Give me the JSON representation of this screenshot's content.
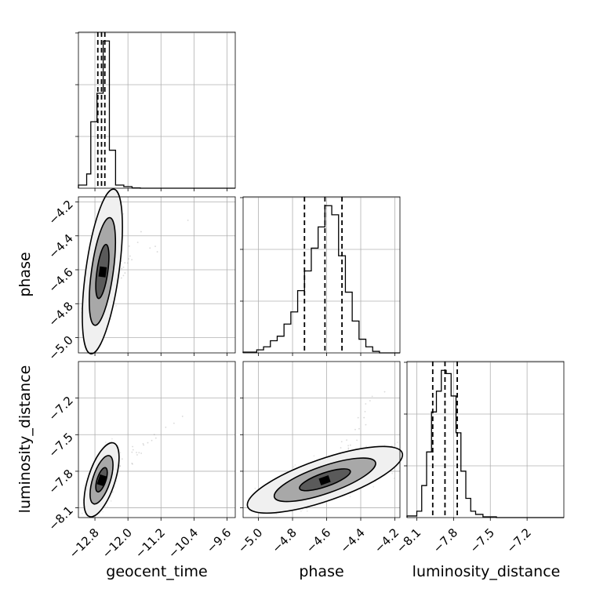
{
  "chart_data": {
    "type": "corner",
    "parameters": [
      "geocent_time",
      "phase",
      "luminosity_distance"
    ],
    "axes": [
      {
        "name": "geocent_time",
        "label": "geocent_time",
        "lim": [
          -13.2,
          -9.4
        ],
        "ticks": [
          -12.8,
          -12.0,
          -11.2,
          -10.4,
          -9.6
        ],
        "tick_labels": [
          "−12.8",
          "−12.0",
          "−11.2",
          "−10.4",
          "−9.6"
        ]
      },
      {
        "name": "phase",
        "label": "phase",
        "lim": [
          -5.09,
          -4.17
        ],
        "ticks": [
          -5.0,
          -4.8,
          -4.6,
          -4.4,
          -4.2
        ],
        "tick_labels": [
          "−5.0",
          "−4.8",
          "−4.6",
          "−4.4",
          "−4.2"
        ]
      },
      {
        "name": "luminosity_distance",
        "label": "luminosity_distance",
        "lim": [
          -8.18,
          -6.9
        ],
        "ticks": [
          -8.1,
          -7.8,
          -7.5,
          -7.2
        ],
        "tick_labels": [
          "−8.1",
          "−7.8",
          "−7.5",
          "−7.2"
        ]
      }
    ],
    "histograms": [
      {
        "param": "geocent_time",
        "bin_edges": [
          -13.2,
          -13.0,
          -12.9,
          -12.75,
          -12.6,
          -12.45,
          -12.3,
          -12.1,
          -11.9,
          -11.7,
          -9.4
        ],
        "counts": [
          0.2,
          0.9,
          4.2,
          6.0,
          9.3,
          2.4,
          0.2,
          0.1,
          0.02,
          0.0
        ],
        "quantiles": [
          -12.73,
          -12.64,
          -12.56
        ]
      },
      {
        "param": "phase",
        "bin_edges": [
          -5.09,
          -5.01,
          -4.97,
          -4.93,
          -4.89,
          -4.85,
          -4.81,
          -4.77,
          -4.73,
          -4.69,
          -4.65,
          -4.61,
          -4.57,
          -4.53,
          -4.49,
          -4.45,
          -4.41,
          -4.37,
          -4.33,
          -4.29,
          -4.17
        ],
        "counts": [
          0.05,
          0.2,
          0.4,
          0.8,
          1.1,
          1.9,
          2.7,
          4.1,
          5.4,
          6.9,
          8.3,
          9.7,
          9.1,
          6.4,
          4.0,
          2.1,
          0.9,
          0.4,
          0.1,
          0.0
        ],
        "quantiles": [
          -4.73,
          -4.61,
          -4.51
        ]
      },
      {
        "param": "luminosity_distance",
        "bin_edges": [
          -8.18,
          -8.1,
          -8.06,
          -8.02,
          -7.98,
          -7.94,
          -7.9,
          -7.86,
          -7.82,
          -7.78,
          -7.74,
          -7.7,
          -7.66,
          -7.62,
          -7.56,
          -7.45,
          -6.9
        ],
        "counts": [
          0.1,
          0.4,
          2.0,
          4.1,
          6.6,
          7.9,
          9.2,
          9.0,
          7.6,
          5.3,
          2.9,
          1.2,
          0.4,
          0.2,
          0.05,
          0.0
        ],
        "quantiles": [
          -7.97,
          -7.87,
          -7.77
        ]
      }
    ],
    "joint": [
      {
        "x": "geocent_time",
        "y": "phase",
        "center": [
          -12.62,
          -4.61
        ],
        "spread": [
          0.16,
          0.16
        ],
        "corr": 0.55,
        "contour_levels": [
          0.39,
          0.86,
          0.99
        ]
      },
      {
        "x": "geocent_time",
        "y": "luminosity_distance",
        "center": [
          -12.64,
          -7.87
        ],
        "spread": [
          0.14,
          0.1
        ],
        "corr": 0.6,
        "contour_levels": [
          0.39,
          0.86,
          0.99
        ]
      },
      {
        "x": "phase",
        "y": "luminosity_distance",
        "center": [
          -4.61,
          -7.87
        ],
        "spread": [
          0.15,
          0.09
        ],
        "corr": 0.75,
        "contour_levels": [
          0.39,
          0.86,
          0.99
        ]
      }
    ],
    "grid": true,
    "quantile_style": "dashed"
  }
}
